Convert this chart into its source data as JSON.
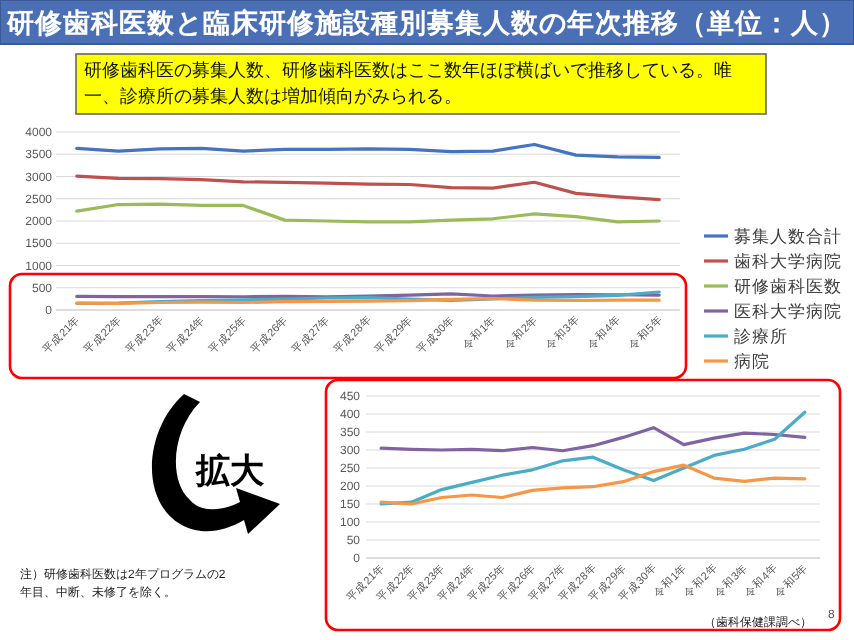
{
  "chart_data": [
    {
      "type": "line",
      "title": "研修歯科医数と臨床研修施設種別募集人数の年次推移（単位：人）",
      "subtitle": "研修歯科医の募集人数、研修歯科医数はここ数年ほぼ横ばいで推移している。唯一、診療所の募集人数は増加傾向がみられる。",
      "categories": [
        "平成21年",
        "平成22年",
        "平成23年",
        "平成24年",
        "平成25年",
        "平成26年",
        "平成27年",
        "平成28年",
        "平成29年",
        "平成30年",
        "令和1年",
        "令和2年",
        "令和3年",
        "令和4年",
        "令和5年"
      ],
      "series": [
        {
          "name": "募集人数合計",
          "color": "#4472c4",
          "values": [
            3630,
            3570,
            3620,
            3630,
            3570,
            3610,
            3610,
            3620,
            3610,
            3560,
            3570,
            3720,
            3480,
            3440,
            3430
          ]
        },
        {
          "name": "歯科大学病院",
          "color": "#c0504d",
          "values": [
            3010,
            2960,
            2950,
            2930,
            2880,
            2870,
            2850,
            2830,
            2820,
            2750,
            2740,
            2870,
            2620,
            2540,
            2480
          ]
        },
        {
          "name": "研修歯科医数",
          "color": "#9bbb59",
          "values": [
            2220,
            2370,
            2380,
            2350,
            2350,
            2020,
            2000,
            1980,
            1980,
            2020,
            2050,
            2160,
            2100,
            1980,
            2000
          ]
        },
        {
          "name": "医科大学病院",
          "color": "#8064a2",
          "values": [
            305,
            302,
            300,
            302,
            298,
            307,
            298,
            312,
            335,
            362,
            315,
            333,
            347,
            343,
            335
          ]
        },
        {
          "name": "診療所",
          "color": "#4bacc6",
          "values": [
            150,
            155,
            190,
            210,
            230,
            245,
            270,
            280,
            245,
            215,
            250,
            285,
            302,
            330,
            405
          ]
        },
        {
          "name": "病院",
          "color": "#f79646",
          "values": [
            155,
            150,
            168,
            175,
            168,
            188,
            195,
            198,
            212,
            240,
            258,
            222,
            213,
            222,
            220
          ]
        }
      ],
      "ylim": [
        0,
        4000
      ],
      "yticks": [
        0,
        500,
        1000,
        1500,
        2000,
        2500,
        3000,
        3500,
        4000
      ],
      "grid": "y",
      "legend": "right",
      "annotations": [
        "拡大",
        "注）研修歯科医数は2年プログラムの2年目、中断、未修了を除く。"
      ]
    },
    {
      "type": "line",
      "categories": [
        "平成21年",
        "平成22年",
        "平成23年",
        "平成24年",
        "平成25年",
        "平成26年",
        "平成27年",
        "平成28年",
        "平成29年",
        "平成30年",
        "令和1年",
        "令和2年",
        "令和3年",
        "令和4年",
        "令和5年"
      ],
      "series": [
        {
          "color": "#8064a2",
          "values": [
            305,
            302,
            300,
            302,
            298,
            307,
            298,
            312,
            335,
            362,
            315,
            333,
            347,
            343,
            335
          ]
        },
        {
          "color": "#4bacc6",
          "values": [
            150,
            155,
            190,
            210,
            230,
            245,
            270,
            280,
            245,
            215,
            250,
            285,
            302,
            330,
            405
          ]
        },
        {
          "color": "#f79646",
          "values": [
            155,
            150,
            168,
            175,
            168,
            188,
            195,
            198,
            212,
            240,
            258,
            222,
            213,
            222,
            220
          ]
        }
      ],
      "ylim": [
        0,
        450
      ],
      "yticks": [
        0,
        50,
        100,
        150,
        200,
        250,
        300,
        350,
        400,
        450
      ],
      "grid": "y",
      "annotations": [
        "（歯科保健課調べ）",
        "8"
      ]
    }
  ]
}
